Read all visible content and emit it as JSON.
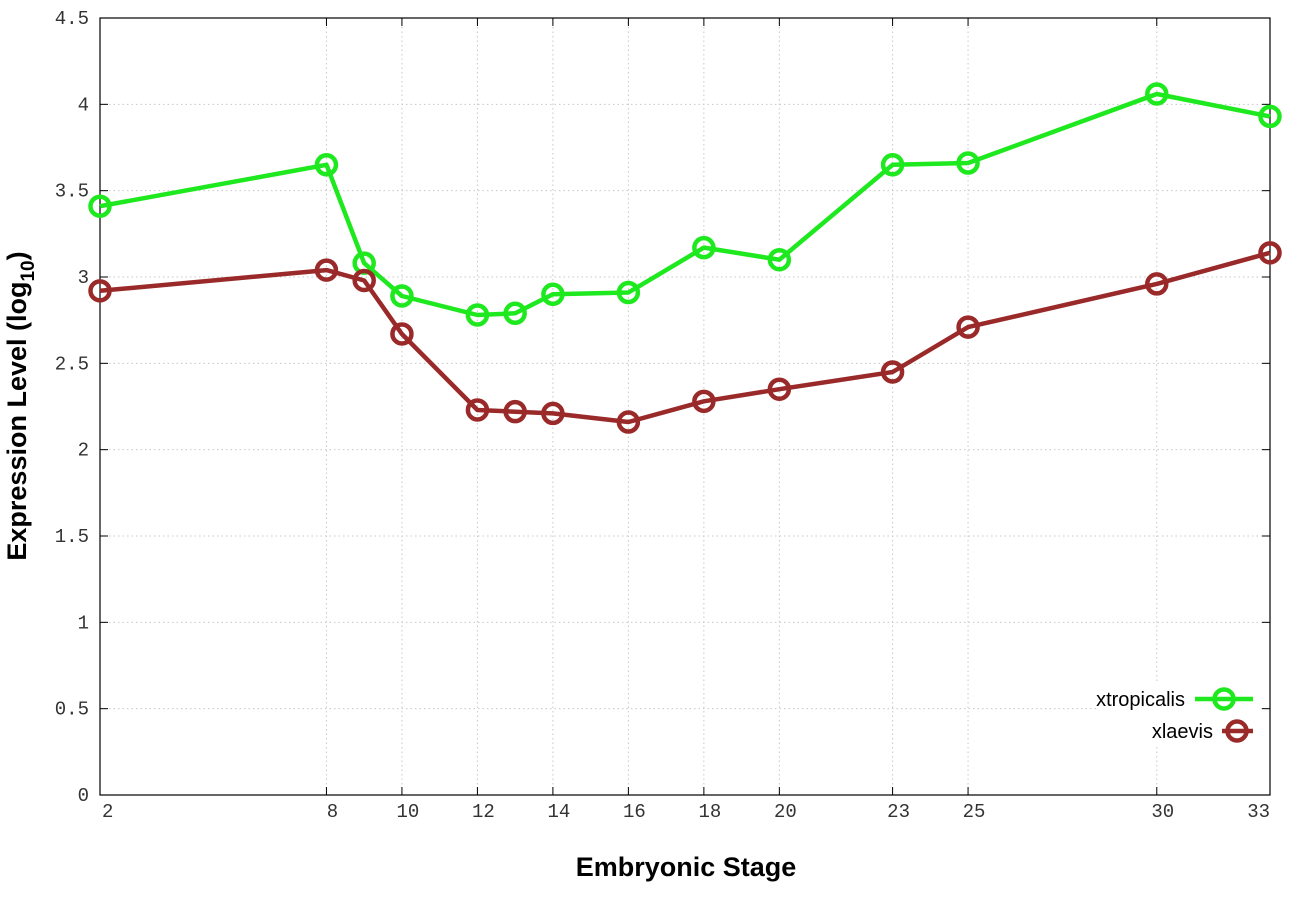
{
  "chart_data": {
    "type": "line",
    "title": "",
    "xlabel": "Embryonic Stage",
    "ylabel": "Expression Level (log",
    "ylabel_subscript": "10",
    "ylabel_suffix": ")",
    "x": [
      2,
      8,
      9,
      10,
      12,
      13,
      14,
      16,
      18,
      20,
      23,
      25,
      30,
      33
    ],
    "x_tick_values": [
      2,
      8,
      10,
      12,
      14,
      16,
      18,
      20,
      23,
      25,
      30,
      33
    ],
    "x_tick_labels": [
      "2",
      "8",
      "10",
      "12",
      "14",
      "16",
      "18",
      "20",
      "23",
      "25",
      "30",
      "33"
    ],
    "y_tick_values": [
      0,
      0.5,
      1,
      1.5,
      2,
      2.5,
      3,
      3.5,
      4,
      4.5
    ],
    "y_tick_labels": [
      "0",
      "0.5",
      "1",
      "1.5",
      "2",
      "2.5",
      "3",
      "3.5",
      "4",
      "4.5"
    ],
    "xlim": [
      2,
      33
    ],
    "ylim": [
      0,
      4.5
    ],
    "grid": true,
    "legend_position": "bottom-right",
    "series": [
      {
        "name": "xtropicalis",
        "color": "#1ee81e",
        "values": [
          3.41,
          3.65,
          3.08,
          2.89,
          2.78,
          2.79,
          2.9,
          2.91,
          3.17,
          3.1,
          3.65,
          3.66,
          4.06,
          3.93
        ]
      },
      {
        "name": "xlaevis",
        "color": "#9a2a2a",
        "values": [
          2.92,
          3.04,
          2.98,
          2.67,
          2.23,
          2.22,
          2.21,
          2.16,
          2.28,
          2.35,
          2.45,
          2.71,
          2.96,
          3.14
        ]
      }
    ]
  }
}
